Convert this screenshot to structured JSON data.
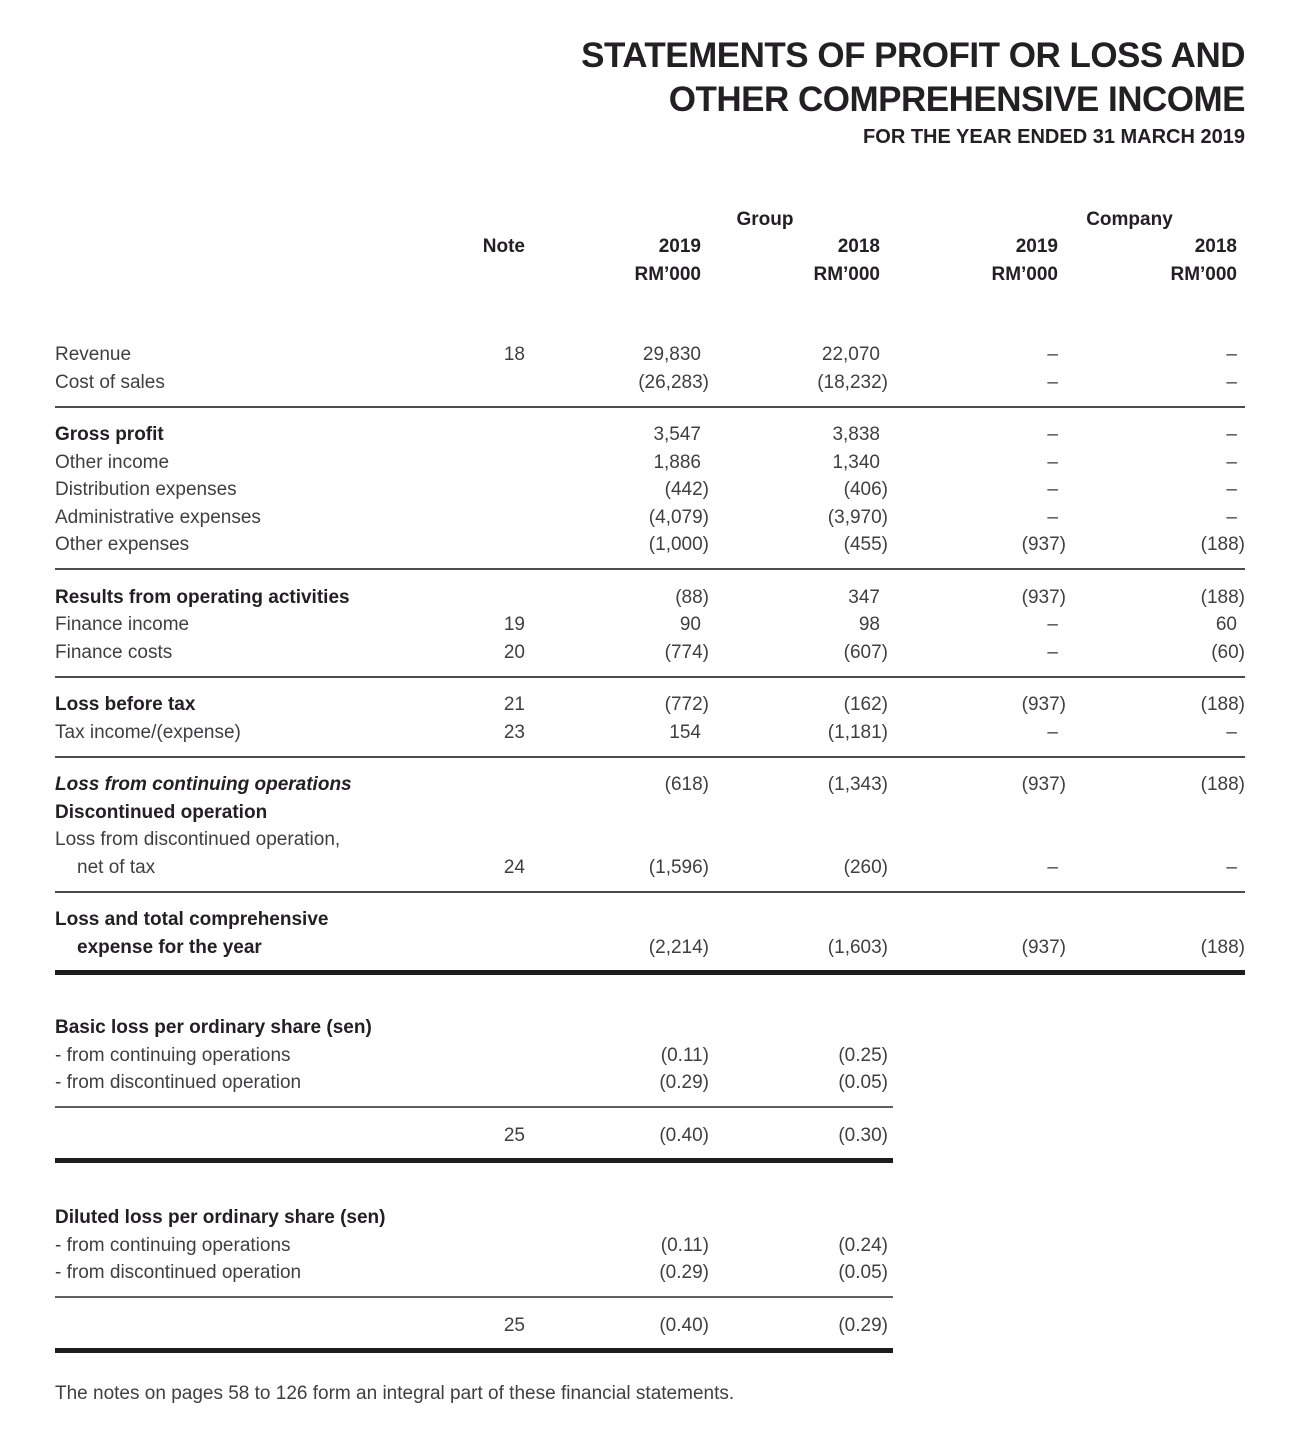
{
  "page": {
    "title_line1": "STATEMENTS OF PROFIT OR LOSS AND",
    "title_line2": "OTHER COMPREHENSIVE INCOME",
    "subtitle": "FOR THE YEAR ENDED 31 MARCH 2019",
    "footnote": "The notes on pages 58 to 126 form an integral part of these financial statements."
  },
  "table": {
    "group_header": "Group",
    "company_header": "Company",
    "note_header": "Note",
    "year_headers": [
      "2019",
      "2018",
      "2019",
      "2018"
    ],
    "unit_headers": [
      "RM’000",
      "RM’000",
      "RM’000",
      "RM’000"
    ],
    "rows": [
      {
        "label": "Revenue",
        "note": "18",
        "values": [
          "29,830",
          "22,070",
          "–",
          "–"
        ]
      },
      {
        "label": "Cost of sales",
        "values": [
          "(26,283)",
          "(18,232)",
          "–",
          "–"
        ]
      },
      {
        "type": "rule",
        "weight": "medium",
        "span": "full"
      },
      {
        "label": "Gross profit",
        "bold": true,
        "values": [
          "3,547",
          "3,838",
          "–",
          "–"
        ]
      },
      {
        "label": "Other income",
        "values": [
          "1,886",
          "1,340",
          "–",
          "–"
        ]
      },
      {
        "label": "Distribution expenses",
        "values": [
          "(442)",
          "(406)",
          "–",
          "–"
        ]
      },
      {
        "label": "Administrative expenses",
        "values": [
          "(4,079)",
          "(3,970)",
          "–",
          "–"
        ]
      },
      {
        "label": "Other expenses",
        "values": [
          "(1,000)",
          "(455)",
          "(937)",
          "(188)"
        ]
      },
      {
        "type": "rule",
        "weight": "medium",
        "span": "full"
      },
      {
        "label": "Results from operating activities",
        "bold": true,
        "values": [
          "(88)",
          "347",
          "(937)",
          "(188)"
        ]
      },
      {
        "label": "Finance income",
        "note": "19",
        "values": [
          "90",
          "98",
          "–",
          "60"
        ]
      },
      {
        "label": "Finance costs",
        "note": "20",
        "values": [
          "(774)",
          "(607)",
          "–",
          "(60)"
        ]
      },
      {
        "type": "rule",
        "weight": "medium",
        "span": "full"
      },
      {
        "label": "Loss before tax",
        "bold": true,
        "note": "21",
        "values": [
          "(772)",
          "(162)",
          "(937)",
          "(188)"
        ]
      },
      {
        "label": "Tax income/(expense)",
        "note": "23",
        "values": [
          "154",
          "(1,181)",
          "–",
          "–"
        ]
      },
      {
        "type": "rule",
        "weight": "medium",
        "span": "full"
      },
      {
        "label": "Loss from continuing operations",
        "bold": true,
        "italic": true,
        "values": [
          "(618)",
          "(1,343)",
          "(937)",
          "(188)"
        ]
      },
      {
        "label": "Discontinued operation",
        "bold": true,
        "values": []
      },
      {
        "label": "Loss from discontinued operation,",
        "values": []
      },
      {
        "label": "net of tax",
        "indent": true,
        "note": "24",
        "values": [
          "(1,596)",
          "(260)",
          "–",
          "–"
        ]
      },
      {
        "type": "rule",
        "weight": "medium",
        "span": "full"
      },
      {
        "label": "Loss and total comprehensive",
        "bold": true,
        "values": []
      },
      {
        "label": "expense for the year",
        "bold": true,
        "indent": true,
        "values": [
          "(2,214)",
          "(1,603)",
          "(937)",
          "(188)"
        ]
      },
      {
        "type": "rule",
        "weight": "thick",
        "span": "full"
      },
      {
        "type": "gap",
        "h": 40
      },
      {
        "label": "Basic loss per ordinary share (sen)",
        "bold": true,
        "values": []
      },
      {
        "label": "- from continuing operations",
        "values": [
          "(0.11)",
          "(0.25)",
          "",
          ""
        ]
      },
      {
        "label": "- from discontinued operation",
        "values": [
          "(0.29)",
          "(0.05)",
          "",
          ""
        ]
      },
      {
        "type": "rule",
        "weight": "thin",
        "span": "partial"
      },
      {
        "label": "",
        "note": "25",
        "values": [
          "(0.40)",
          "(0.30)",
          "",
          ""
        ]
      },
      {
        "type": "rule",
        "weight": "thick",
        "span": "partial"
      },
      {
        "type": "gap",
        "h": 42
      },
      {
        "label": "Diluted loss per ordinary share (sen)",
        "bold": true,
        "values": []
      },
      {
        "label": "- from continuing operations",
        "values": [
          "(0.11)",
          "(0.24)",
          "",
          ""
        ]
      },
      {
        "label": "- from discontinued operation",
        "values": [
          "(0.29)",
          "(0.05)",
          "",
          ""
        ]
      },
      {
        "type": "rule",
        "weight": "thin",
        "span": "partial"
      },
      {
        "label": "",
        "note": "25",
        "values": [
          "(0.40)",
          "(0.29)",
          "",
          ""
        ]
      },
      {
        "type": "rule",
        "weight": "thick",
        "span": "partial"
      }
    ]
  }
}
